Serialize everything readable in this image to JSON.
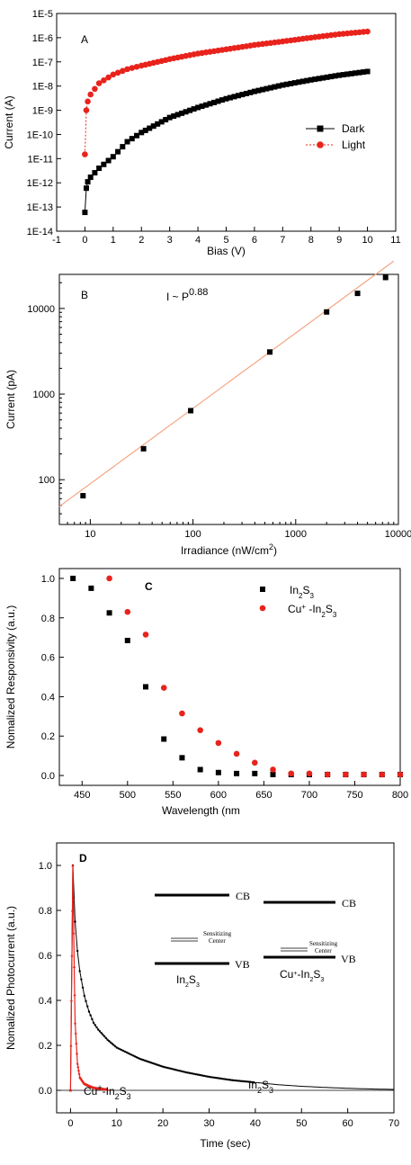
{
  "chart_data": [
    {
      "panel": "A",
      "type": "line",
      "xlabel": "Bias (V)",
      "ylabel": "Current (A)",
      "xlim": [
        -1,
        11
      ],
      "ylim_exponent": [
        -14,
        -5
      ],
      "yscale": "log",
      "xticks": [
        "-1",
        "0",
        "1",
        "2",
        "3",
        "4",
        "5",
        "6",
        "7",
        "8",
        "9",
        "10",
        "11"
      ],
      "yticks": [
        "1E-14",
        "1E-13",
        "1E-12",
        "1E-11",
        "1E-10",
        "1E-9",
        "1E-8",
        "1E-7",
        "1E-6",
        "1E-5"
      ],
      "legend_position": "middle-right",
      "series": [
        {
          "name": "Dark",
          "color": "#000000",
          "marker": "square",
          "x": [
            0,
            0.05,
            0.1,
            0.2,
            0.5,
            1,
            1.5,
            2,
            3,
            4,
            5,
            6,
            7,
            8,
            9,
            10
          ],
          "y": [
            6e-14,
            6e-13,
            1.1e-12,
            1.7e-12,
            4e-12,
            1.2e-11,
            5e-11,
            1.2e-10,
            5e-10,
            1.3e-09,
            3e-09,
            6e-09,
            1.1e-08,
            1.8e-08,
            2.8e-08,
            4e-08
          ]
        },
        {
          "name": "Light",
          "color": "#e8231c",
          "marker": "circle",
          "x": [
            0,
            0.05,
            0.1,
            0.2,
            0.5,
            1,
            1.5,
            2,
            3,
            4,
            5,
            6,
            7,
            8,
            9,
            10
          ],
          "y": [
            1.5e-11,
            1e-09,
            2.3e-09,
            4.5e-09,
            1.3e-08,
            3e-08,
            5e-08,
            7e-08,
            1.3e-07,
            2.2e-07,
            3.3e-07,
            5e-07,
            7e-07,
            1e-06,
            1.4e-06,
            1.8e-06
          ]
        }
      ]
    },
    {
      "panel": "B",
      "type": "scatter",
      "xlabel": "Irradiance (nW/cm",
      "xlabel_sup": "2",
      "xlabel_end": ")",
      "ylabel": "Current (pA)",
      "xscale": "log",
      "yscale": "log",
      "xlim": [
        5,
        10000
      ],
      "ylim": [
        30,
        25000
      ],
      "xticks": [
        "10",
        "100",
        "1000",
        "10000"
      ],
      "yticks": [
        "100",
        "1000",
        "10000"
      ],
      "annotation": "I ~ P",
      "annotation_sup": "0.88",
      "fit_line_color": "#f4a582",
      "series": [
        {
          "name": "",
          "color": "#000000",
          "x": [
            8.5,
            33,
            95,
            560,
            2000,
            4000,
            7500
          ],
          "y": [
            65,
            230,
            640,
            3100,
            9100,
            15000,
            23000
          ]
        }
      ]
    },
    {
      "panel": "C",
      "type": "scatter",
      "xlabel": "Wavelength (nm",
      "ylabel": "Nomalized Responsivity (a.u.)",
      "xlim": [
        425,
        800
      ],
      "ylim": [
        -0.05,
        1.05
      ],
      "xticks": [
        "450",
        "500",
        "550",
        "600",
        "650",
        "700",
        "750",
        "800"
      ],
      "yticks": [
        "0.0",
        "0.2",
        "0.4",
        "0.6",
        "0.8",
        "1.0"
      ],
      "legend_position": "top-right",
      "series": [
        {
          "name": "In2S3",
          "name_html": "In<tspan baseline-shift='sub' font-size='8'>2</tspan>S<tspan baseline-shift='sub' font-size='8'>3</tspan>",
          "color": "#000000",
          "marker": "square",
          "x": [
            440,
            460,
            480,
            500,
            520,
            540,
            560,
            580,
            600,
            620,
            640,
            660,
            680,
            700,
            720,
            740,
            760,
            780,
            800
          ],
          "y": [
            1.0,
            0.95,
            0.825,
            0.685,
            0.45,
            0.185,
            0.09,
            0.03,
            0.015,
            0.01,
            0.01,
            0.005,
            0.005,
            0.005,
            0.005,
            0.005,
            0.005,
            0.005,
            0.005
          ]
        },
        {
          "name": "Cu+ -In2S3",
          "color": "#e8231c",
          "marker": "circle",
          "x": [
            480,
            500,
            520,
            540,
            560,
            580,
            600,
            620,
            640,
            660,
            680,
            700,
            720,
            740,
            760,
            780,
            800
          ],
          "y": [
            1.0,
            0.83,
            0.715,
            0.445,
            0.315,
            0.23,
            0.165,
            0.11,
            0.065,
            0.03,
            0.01,
            0.01,
            0.005,
            0.005,
            0.005,
            0.005,
            0.005
          ]
        }
      ]
    },
    {
      "panel": "D",
      "type": "line",
      "xlabel": "Time (sec)",
      "ylabel": "Nomalized Photocurrent (a.u.)",
      "xlim": [
        -3,
        70
      ],
      "ylim": [
        -0.1,
        1.1
      ],
      "xticks": [
        "0",
        "10",
        "20",
        "30",
        "40",
        "50",
        "60",
        "70"
      ],
      "yticks": [
        "0.0",
        "0.2",
        "0.4",
        "0.6",
        "0.8",
        "1.0"
      ],
      "series": [
        {
          "name": "In2S3",
          "color": "#000000",
          "x": [
            0,
            0.5,
            1,
            1.5,
            2,
            3,
            4,
            5,
            6,
            8,
            10,
            15,
            20,
            25,
            30,
            35,
            40,
            45,
            50,
            55,
            60,
            65,
            70
          ],
          "y": [
            0.0,
            1.0,
            0.75,
            0.62,
            0.53,
            0.42,
            0.35,
            0.3,
            0.27,
            0.225,
            0.19,
            0.14,
            0.105,
            0.08,
            0.06,
            0.045,
            0.035,
            0.025,
            0.018,
            0.013,
            0.009,
            0.006,
            0.004
          ]
        },
        {
          "name": "Cu+-In2S3",
          "color": "#e8231c",
          "x": [
            0,
            0.3,
            0.5,
            0.8,
            1,
            1.5,
            2,
            3,
            4,
            5,
            6,
            8
          ],
          "y": [
            0.0,
            0.6,
            1.0,
            0.55,
            0.3,
            0.12,
            0.06,
            0.03,
            0.02,
            0.012,
            0.008,
            0.004
          ]
        }
      ]
    }
  ],
  "inset_diagram": {
    "cb_label": "CB",
    "vb_label": "VB",
    "sensitizing_line1": "Sensitizing",
    "sensitizing_line2": "Center"
  }
}
